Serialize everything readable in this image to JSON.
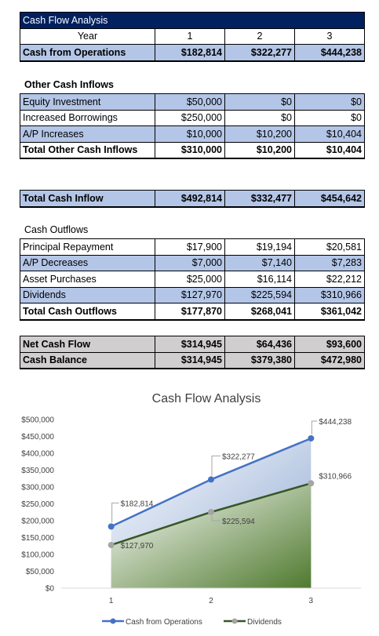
{
  "header_table": {
    "title": "Cash Flow Analysis",
    "year_label": "Year",
    "years": [
      "1",
      "2",
      "3"
    ],
    "ops_label": "Cash from Operations",
    "ops_values": [
      "$182,814",
      "$322,277",
      "$444,238"
    ]
  },
  "inflows": {
    "heading": "Other Cash Inflows",
    "rows": [
      {
        "label": "Equity Investment",
        "values": [
          "$50,000",
          "$0",
          "$0"
        ]
      },
      {
        "label": "Increased Borrowings",
        "values": [
          "$250,000",
          "$0",
          "$0"
        ]
      },
      {
        "label": "A/P Increases",
        "values": [
          "$10,000",
          "$10,200",
          "$10,404"
        ]
      }
    ],
    "total": {
      "label": "Total Other Cash Inflows",
      "values": [
        "$310,000",
        "$10,200",
        "$10,404"
      ]
    }
  },
  "total_inflow": {
    "label": "Total Cash Inflow",
    "values": [
      "$492,814",
      "$332,477",
      "$454,642"
    ]
  },
  "outflows": {
    "heading": "Cash Outflows",
    "rows": [
      {
        "label": "Principal Repayment",
        "values": [
          "$17,900",
          "$19,194",
          "$20,581"
        ]
      },
      {
        "label": "A/P Decreases",
        "values": [
          "$7,000",
          "$7,140",
          "$7,283"
        ]
      },
      {
        "label": "Asset Purchases",
        "values": [
          "$25,000",
          "$16,114",
          "$22,212"
        ]
      },
      {
        "label": "Dividends",
        "values": [
          "$127,970",
          "$225,594",
          "$310,966"
        ]
      }
    ],
    "total": {
      "label": "Total Cash Outflows",
      "values": [
        "$177,870",
        "$268,041",
        "$361,042"
      ]
    }
  },
  "net": {
    "net_label": "Net Cash Flow",
    "net_values": [
      "$314,945",
      "$64,436",
      "$93,600"
    ],
    "balance_label": "Cash Balance",
    "balance_values": [
      "$314,945",
      "$379,380",
      "$472,980"
    ]
  },
  "colors": {
    "title_bg": "#002060",
    "blue_row": "#b4c6e7",
    "gray_row": "#d0cece",
    "ops_series": "#4472c4",
    "div_series": "#375623"
  },
  "chart_data": {
    "type": "area",
    "title": "Cash Flow Analysis",
    "categories": [
      "1",
      "2",
      "3"
    ],
    "ylim": [
      0,
      500000
    ],
    "yticks": [
      "$0",
      "$50,000",
      "$100,000",
      "$150,000",
      "$200,000",
      "$250,000",
      "$300,000",
      "$350,000",
      "$400,000",
      "$450,000",
      "$500,000"
    ],
    "legend_position": "bottom",
    "grid": false,
    "series": [
      {
        "name": "Cash from Operations",
        "values": [
          182814,
          322277,
          444238
        ],
        "labels": [
          "$182,814",
          "$322,277",
          "$444,238"
        ],
        "color": "#4472c4"
      },
      {
        "name": "Dividends",
        "values": [
          127970,
          225594,
          310966
        ],
        "labels": [
          "$127,970",
          "$225,594",
          "$310,966"
        ],
        "color": "#375623"
      }
    ]
  }
}
